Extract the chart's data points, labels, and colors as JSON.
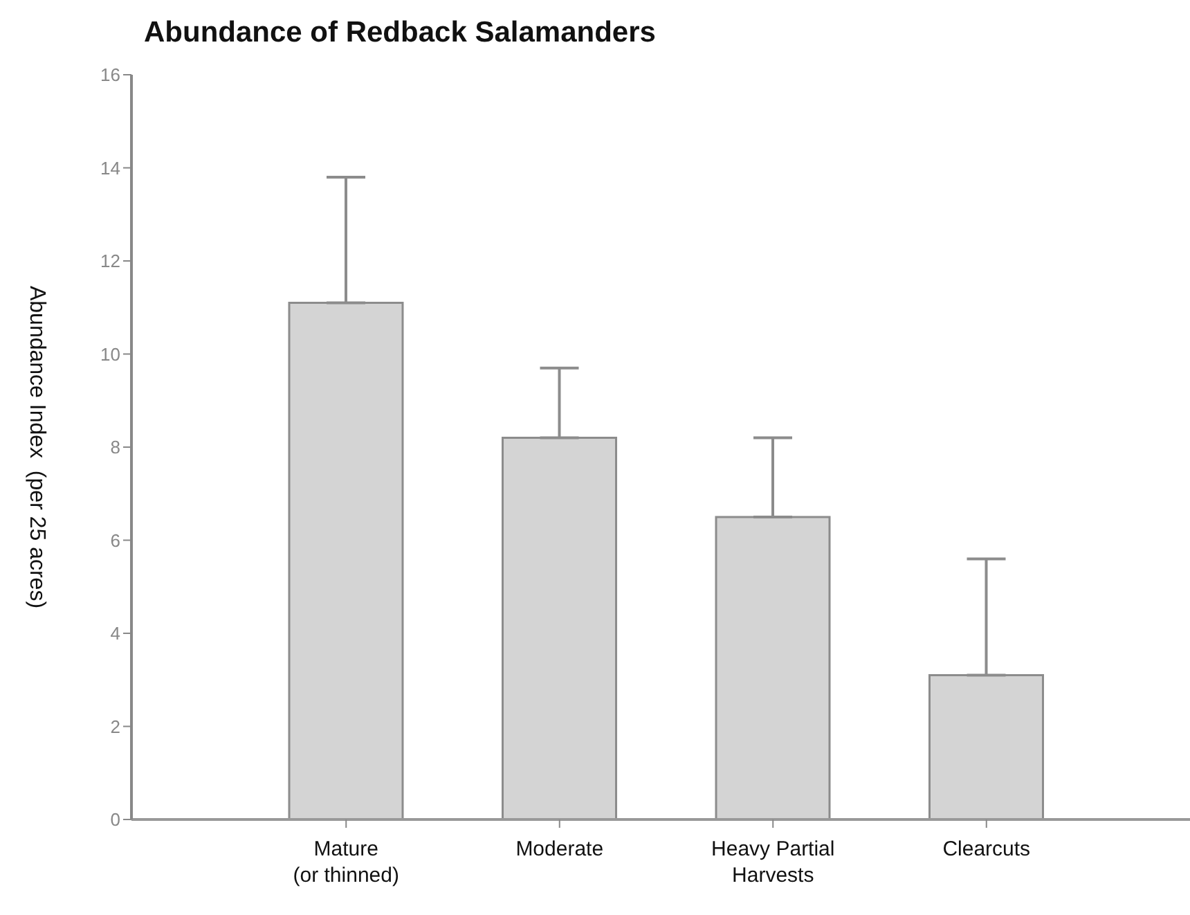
{
  "chart_data": {
    "type": "bar",
    "title": "Abundance of Redback Salamanders",
    "ylabel": "Abundance Index  (per 25 acres)",
    "categories": [
      "Mature\n(or thinned)",
      "Moderate",
      "Heavy Partial\nHarvests",
      "Clearcuts"
    ],
    "values": [
      11.1,
      8.2,
      6.5,
      3.1
    ],
    "errors": [
      [
        11.1,
        13.8
      ],
      [
        8.2,
        9.7
      ],
      [
        6.5,
        8.2
      ],
      [
        3.1,
        5.6
      ]
    ],
    "color": "#d4d4d4",
    "ylim": [
      0,
      16
    ],
    "yticks": [
      0,
      2,
      4,
      6,
      8,
      10,
      12,
      14,
      16
    ]
  }
}
